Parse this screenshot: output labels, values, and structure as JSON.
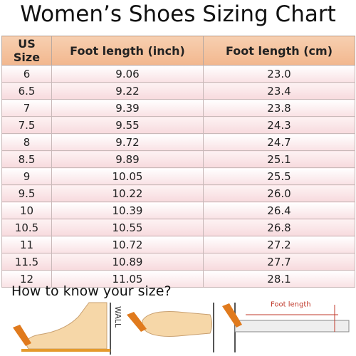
{
  "header": {
    "title": "Women’s Shoes Sizing Chart"
  },
  "table": {
    "columns": [
      "US Size",
      "Foot length (inch)",
      "Foot length (cm)"
    ],
    "rows": [
      [
        "6",
        "9.06",
        "23.0"
      ],
      [
        "6.5",
        "9.22",
        "23.4"
      ],
      [
        "7",
        "9.39",
        "23.8"
      ],
      [
        "7.5",
        "9.55",
        "24.3"
      ],
      [
        "8",
        "9.72",
        "24.7"
      ],
      [
        "8.5",
        "9.89",
        "25.1"
      ],
      [
        "9",
        "10.05",
        "25.5"
      ],
      [
        "9.5",
        "10.22",
        "26.0"
      ],
      [
        "10",
        "10.39",
        "26.4"
      ],
      [
        "10.5",
        "10.55",
        "26.8"
      ],
      [
        "11",
        "10.72",
        "27.2"
      ],
      [
        "11.5",
        "10.89",
        "27.7"
      ],
      [
        "12",
        "11.05",
        "28.1"
      ]
    ]
  },
  "instructions": {
    "title": "How to know your size?",
    "wall_label": "WALL",
    "length_label": "Foot length"
  }
}
